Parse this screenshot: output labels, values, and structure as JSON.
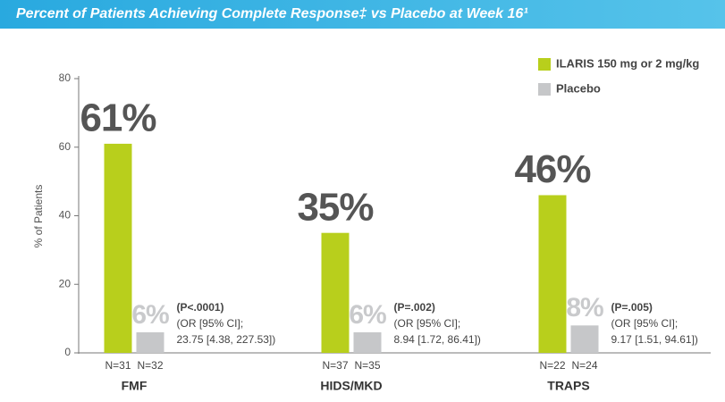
{
  "chart_data": {
    "type": "bar",
    "title": "Percent of Patients Achieving Complete Response‡ vs Placebo at Week 16¹",
    "y_label": "% of Patients",
    "categories": [
      "FMF",
      "HIDS/MKD",
      "TRAPS"
    ],
    "series": [
      {
        "name": "ILARIS 150 mg or 2 mg/kg",
        "color": "#b8cf1c",
        "values": [
          61,
          35,
          46
        ],
        "value_labels": [
          "61%",
          "35%",
          "46%"
        ],
        "n_labels": [
          "N=31",
          "N=37",
          "N=22"
        ]
      },
      {
        "name": "Placebo",
        "color": "#c6c7c9",
        "values": [
          6,
          6,
          8
        ],
        "value_labels": [
          "6%",
          "6%",
          "8%"
        ],
        "n_labels": [
          "N=32",
          "N=35",
          "N=24"
        ]
      }
    ],
    "annotations": [
      [
        "(P<.0001)",
        "(OR [95% CI];",
        "23.75 [4.38, 227.53])"
      ],
      [
        "(P=.002)",
        "(OR [95% CI];",
        "8.94 [1.72, 86.41])"
      ],
      [
        "(P=.005)",
        "(OR [95% CI];",
        "9.17 [1.51, 94.61])"
      ]
    ],
    "ylim": [
      0,
      80
    ],
    "yticks": [
      0,
      20,
      40,
      60,
      80
    ],
    "grid": false,
    "legend": "top-right"
  }
}
